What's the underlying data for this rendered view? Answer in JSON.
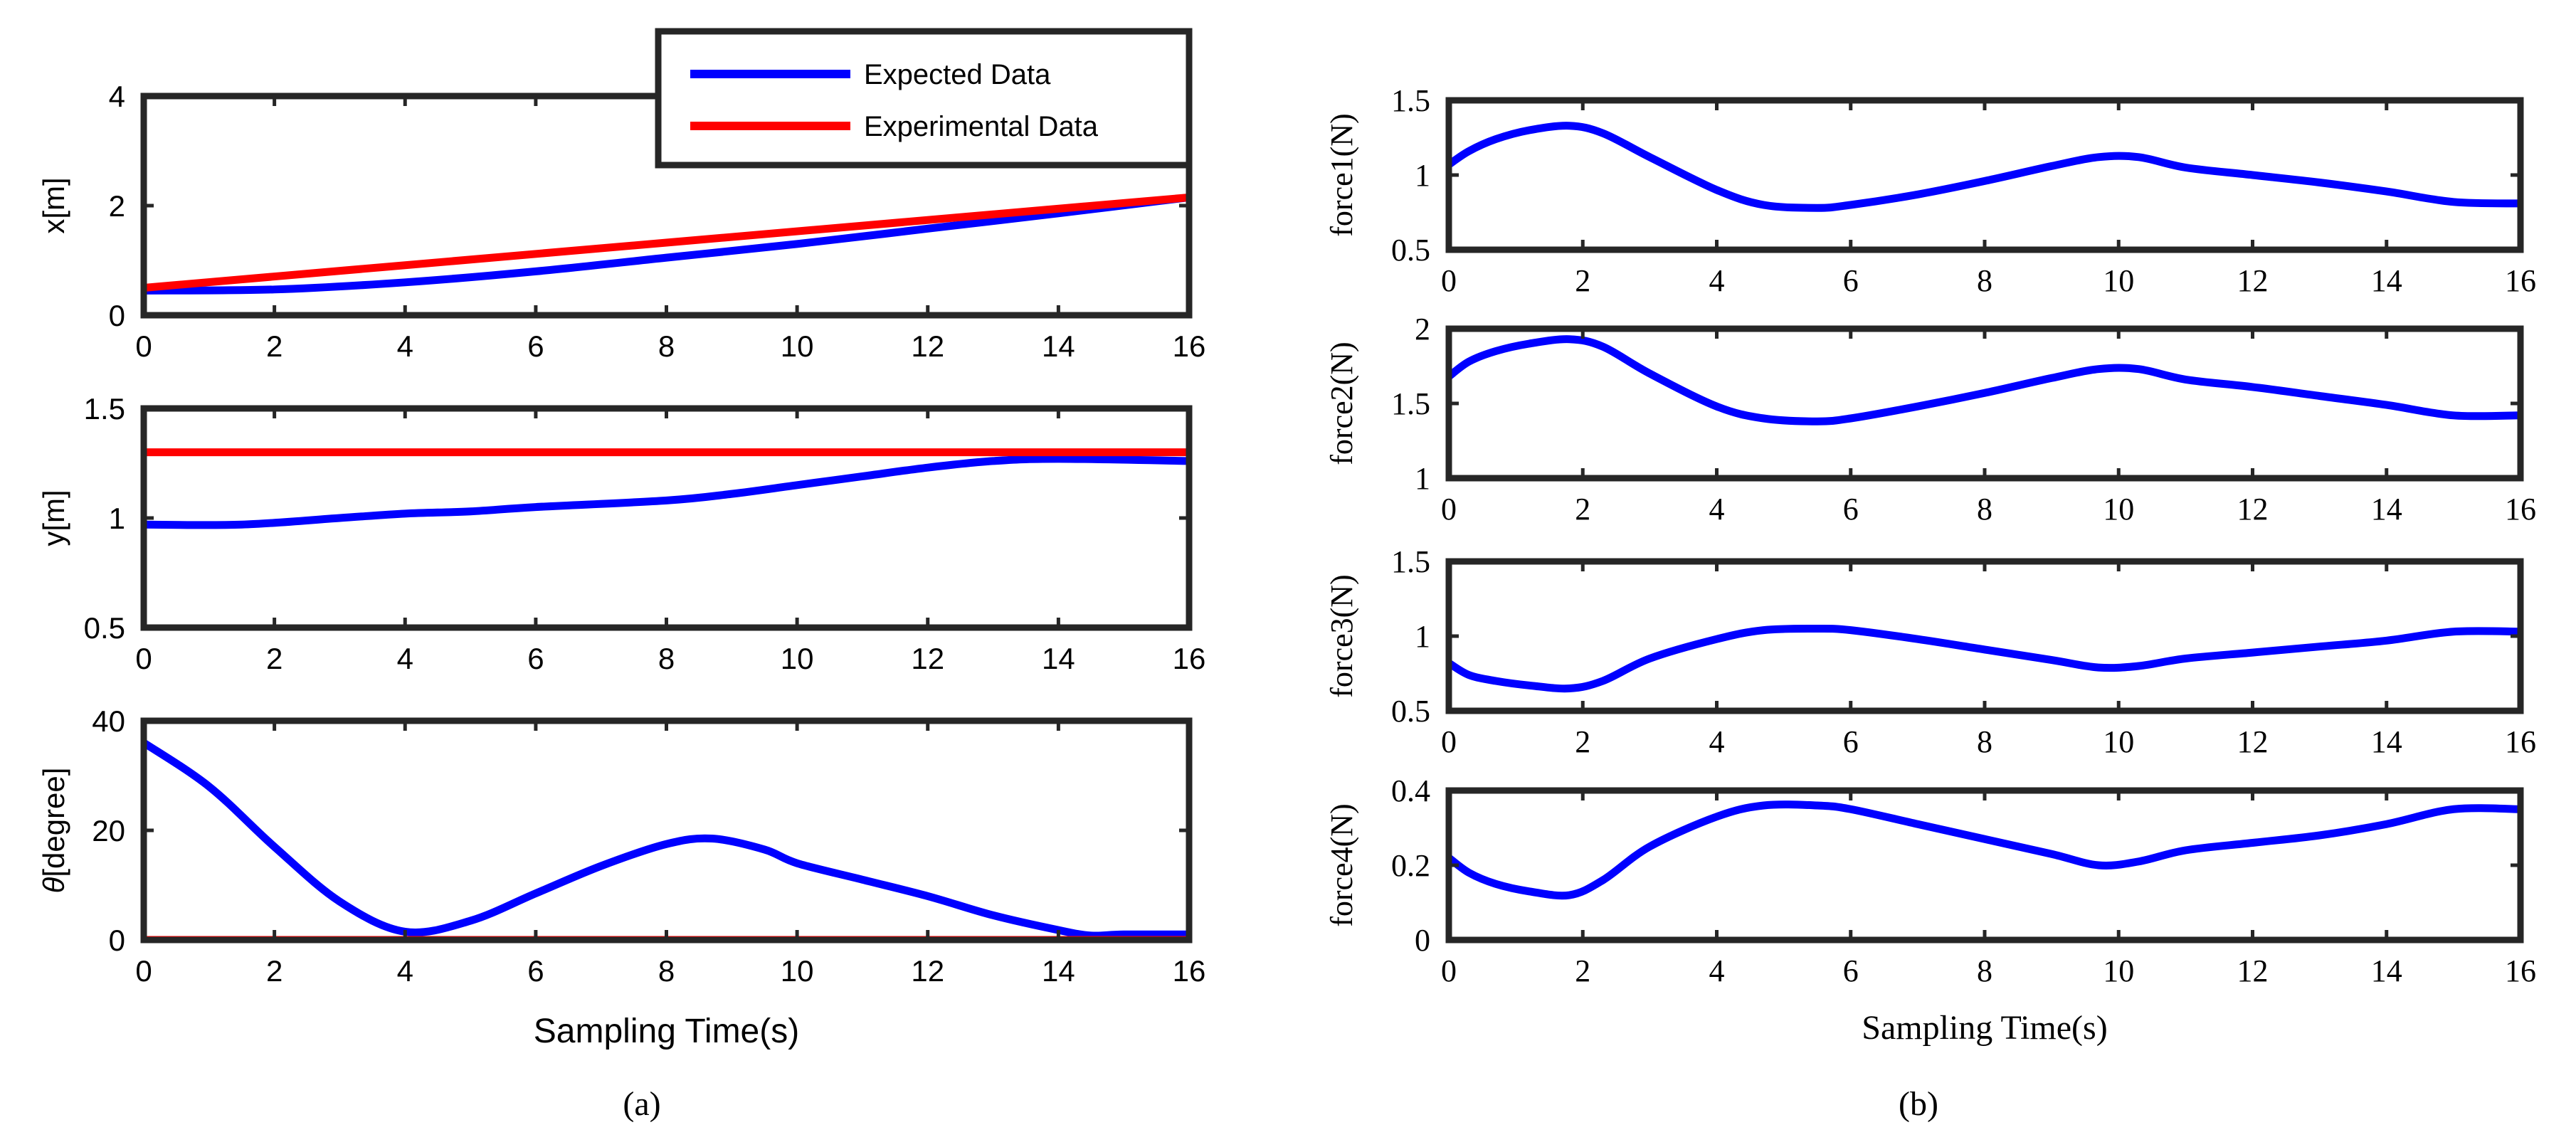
{
  "figure": {
    "label_a": "(a)",
    "label_b": "(b)"
  },
  "legend": {
    "items": [
      "Expected Data",
      "Experimental Data"
    ]
  },
  "colors": {
    "expected": "#0000ff",
    "experimental": "#ff0000",
    "axes": "#262626"
  },
  "chart_data": [
    {
      "type": "line",
      "panel": "a",
      "row": 0,
      "ylabel": "x[m]",
      "xlabel": "",
      "xlim": [
        0,
        16
      ],
      "ylim": [
        0,
        4
      ],
      "xticks": [
        0,
        2,
        4,
        6,
        8,
        10,
        12,
        14,
        16
      ],
      "yticks": [
        0,
        2,
        4
      ],
      "legend": "top-right",
      "series": [
        {
          "name": "Expected Data",
          "x": [
            0,
            2,
            4,
            6,
            8,
            10,
            12,
            14,
            16
          ],
          "y": [
            0.45,
            0.47,
            0.6,
            0.8,
            1.05,
            1.3,
            1.58,
            1.86,
            2.15
          ]
        },
        {
          "name": "Experimental Data",
          "x": [
            0,
            16
          ],
          "y": [
            0.5,
            2.15
          ]
        }
      ]
    },
    {
      "type": "line",
      "panel": "a",
      "row": 1,
      "ylabel": "y[m]",
      "xlabel": "",
      "xlim": [
        0,
        16
      ],
      "ylim": [
        0.5,
        1.5
      ],
      "xticks": [
        0,
        2,
        4,
        6,
        8,
        10,
        12,
        14,
        16
      ],
      "yticks": [
        0.5,
        1,
        1.5
      ],
      "series": [
        {
          "name": "Expected Data",
          "x": [
            0,
            1.5,
            3,
            4,
            5,
            6,
            8,
            9,
            10,
            11,
            12,
            13,
            14,
            16
          ],
          "y": [
            0.97,
            0.97,
            1.0,
            1.02,
            1.03,
            1.05,
            1.08,
            1.11,
            1.15,
            1.19,
            1.23,
            1.26,
            1.27,
            1.26
          ]
        },
        {
          "name": "Experimental Data",
          "x": [
            0,
            16
          ],
          "y": [
            1.3,
            1.3
          ]
        }
      ]
    },
    {
      "type": "line",
      "panel": "a",
      "row": 2,
      "ylabel": "θ[degree]",
      "xlabel": "Sampling Time(s)",
      "xlim": [
        0,
        16
      ],
      "ylim": [
        0,
        40
      ],
      "xticks": [
        0,
        2,
        4,
        6,
        8,
        10,
        12,
        14,
        16
      ],
      "yticks": [
        0,
        20,
        40
      ],
      "series": [
        {
          "name": "Expected Data",
          "x": [
            0,
            1,
            2,
            3,
            4,
            5,
            6,
            7,
            8,
            8.7,
            9.5,
            10,
            11,
            12,
            13,
            14,
            14.5,
            15,
            16
          ],
          "y": [
            36,
            28,
            17,
            7,
            1.5,
            3.5,
            8.5,
            13.5,
            17.5,
            18.5,
            16.5,
            14,
            11,
            8,
            4.5,
            1.8,
            0.8,
            1.0,
            1.0
          ]
        },
        {
          "name": "Experimental Data",
          "x": [
            0,
            16
          ],
          "y": [
            0,
            0
          ]
        }
      ]
    },
    {
      "type": "line",
      "panel": "b",
      "row": 0,
      "ylabel": "force1(N)",
      "xlabel": "",
      "xlim": [
        0,
        16
      ],
      "ylim": [
        0.5,
        1.5
      ],
      "xticks": [
        0,
        2,
        4,
        6,
        8,
        10,
        12,
        14,
        16
      ],
      "yticks": [
        0.5,
        1,
        1.5
      ],
      "series": [
        {
          "name": "force1",
          "x": [
            0,
            0.3,
            0.7,
            1.2,
            1.8,
            2.3,
            3,
            4,
            4.7,
            5.5,
            6,
            7,
            8,
            9,
            9.7,
            10.3,
            11,
            12,
            13,
            14,
            15,
            16
          ],
          "y": [
            1.07,
            1.16,
            1.24,
            1.3,
            1.33,
            1.28,
            1.12,
            0.9,
            0.8,
            0.78,
            0.8,
            0.87,
            0.96,
            1.06,
            1.12,
            1.12,
            1.05,
            1.0,
            0.95,
            0.89,
            0.82,
            0.81
          ]
        }
      ]
    },
    {
      "type": "line",
      "panel": "b",
      "row": 1,
      "ylabel": "force2(N)",
      "xlabel": "",
      "xlim": [
        0,
        16
      ],
      "ylim": [
        1,
        2
      ],
      "xticks": [
        0,
        2,
        4,
        6,
        8,
        10,
        12,
        14,
        16
      ],
      "yticks": [
        1,
        1.5,
        2
      ],
      "series": [
        {
          "name": "force2",
          "x": [
            0,
            0.3,
            0.7,
            1.2,
            1.8,
            2.3,
            3,
            4,
            4.7,
            5.5,
            6,
            7,
            8,
            9,
            9.7,
            10.3,
            11,
            12,
            13,
            14,
            15,
            16
          ],
          "y": [
            1.68,
            1.78,
            1.85,
            1.9,
            1.93,
            1.88,
            1.7,
            1.48,
            1.4,
            1.38,
            1.4,
            1.48,
            1.57,
            1.67,
            1.73,
            1.73,
            1.66,
            1.61,
            1.55,
            1.49,
            1.42,
            1.42
          ]
        }
      ]
    },
    {
      "type": "line",
      "panel": "b",
      "row": 2,
      "ylabel": "force3(N)",
      "xlabel": "",
      "xlim": [
        0,
        16
      ],
      "ylim": [
        0.5,
        1.5
      ],
      "xticks": [
        0,
        2,
        4,
        6,
        8,
        10,
        12,
        14,
        16
      ],
      "yticks": [
        0.5,
        1,
        1.5
      ],
      "series": [
        {
          "name": "force3",
          "x": [
            0,
            0.3,
            0.7,
            1.2,
            1.8,
            2.3,
            3,
            4,
            4.7,
            5.5,
            6,
            7,
            8,
            9,
            9.7,
            10.3,
            11,
            12,
            13,
            14,
            15,
            16
          ],
          "y": [
            0.82,
            0.74,
            0.7,
            0.67,
            0.65,
            0.7,
            0.85,
            0.98,
            1.04,
            1.05,
            1.04,
            0.98,
            0.91,
            0.84,
            0.79,
            0.8,
            0.85,
            0.89,
            0.93,
            0.97,
            1.03,
            1.03
          ]
        }
      ]
    },
    {
      "type": "line",
      "panel": "b",
      "row": 3,
      "ylabel": "force4(N)",
      "xlabel": "Sampling Time(s)",
      "xlim": [
        0,
        16
      ],
      "ylim": [
        0,
        0.4
      ],
      "xticks": [
        0,
        2,
        4,
        6,
        8,
        10,
        12,
        14,
        16
      ],
      "yticks": [
        0,
        0.2,
        0.4
      ],
      "series": [
        {
          "name": "force4",
          "x": [
            0,
            0.3,
            0.7,
            1.2,
            1.8,
            2.3,
            3,
            4,
            4.7,
            5.5,
            6,
            7,
            8,
            9,
            9.7,
            10.3,
            11,
            12,
            13,
            14,
            15,
            16
          ],
          "y": [
            0.22,
            0.18,
            0.15,
            0.13,
            0.12,
            0.16,
            0.25,
            0.33,
            0.36,
            0.36,
            0.35,
            0.31,
            0.27,
            0.23,
            0.2,
            0.21,
            0.24,
            0.26,
            0.28,
            0.31,
            0.35,
            0.35
          ]
        }
      ]
    }
  ]
}
